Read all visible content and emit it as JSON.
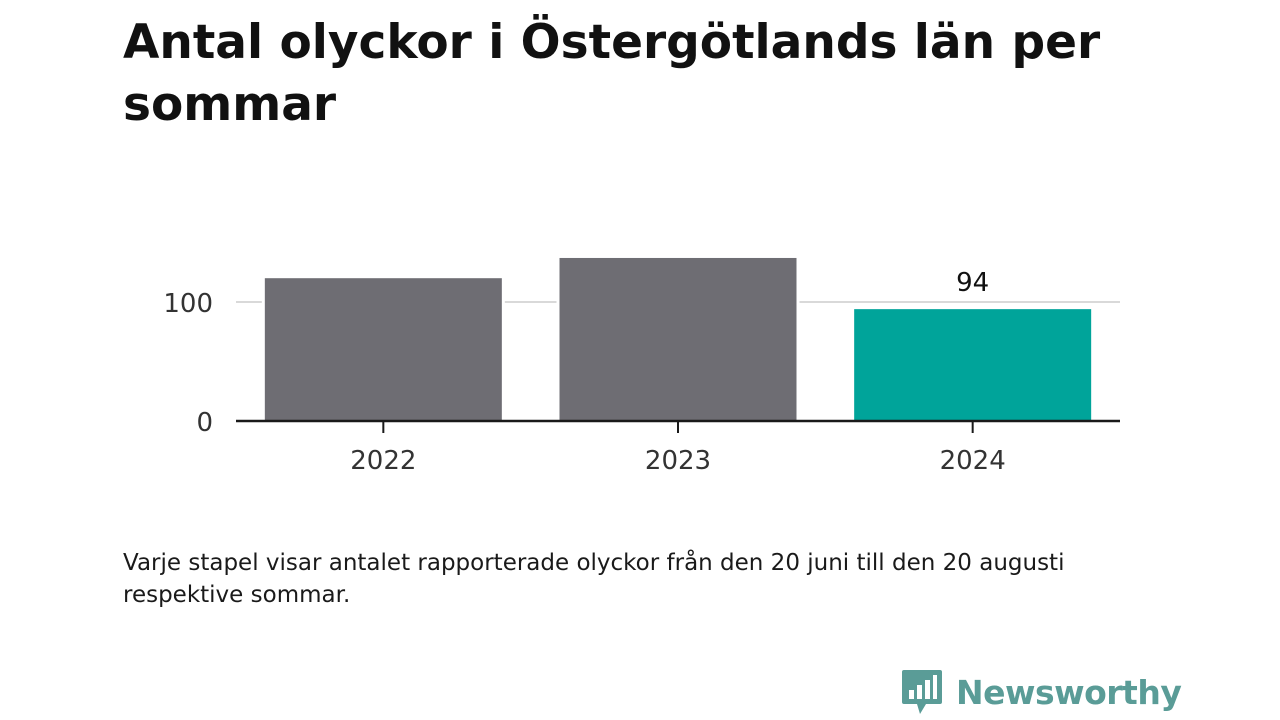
{
  "title": "Antal olyckor i Östergötlands län per sommar",
  "note": "Varje stapel visar antalet rapporterade olyckor från den 20 juni till den 20 augusti respektive sommar.",
  "brand": {
    "name": "Newsworthy",
    "color": "#5a9c97",
    "logo_icon": "bar-chart-speech-bubble-icon"
  },
  "chart_data": {
    "type": "bar",
    "categories": [
      "2022",
      "2023",
      "2024"
    ],
    "values": [
      120,
      137,
      94
    ],
    "colors": [
      "#6e6d73",
      "#6e6d73",
      "#00a49a"
    ],
    "highlight_label": "94",
    "ylim": [
      0,
      140
    ],
    "yticks": [
      0,
      100
    ],
    "ytick_labels": [
      "0",
      "100"
    ],
    "grid": true,
    "title": "",
    "xlabel": "",
    "ylabel": ""
  }
}
